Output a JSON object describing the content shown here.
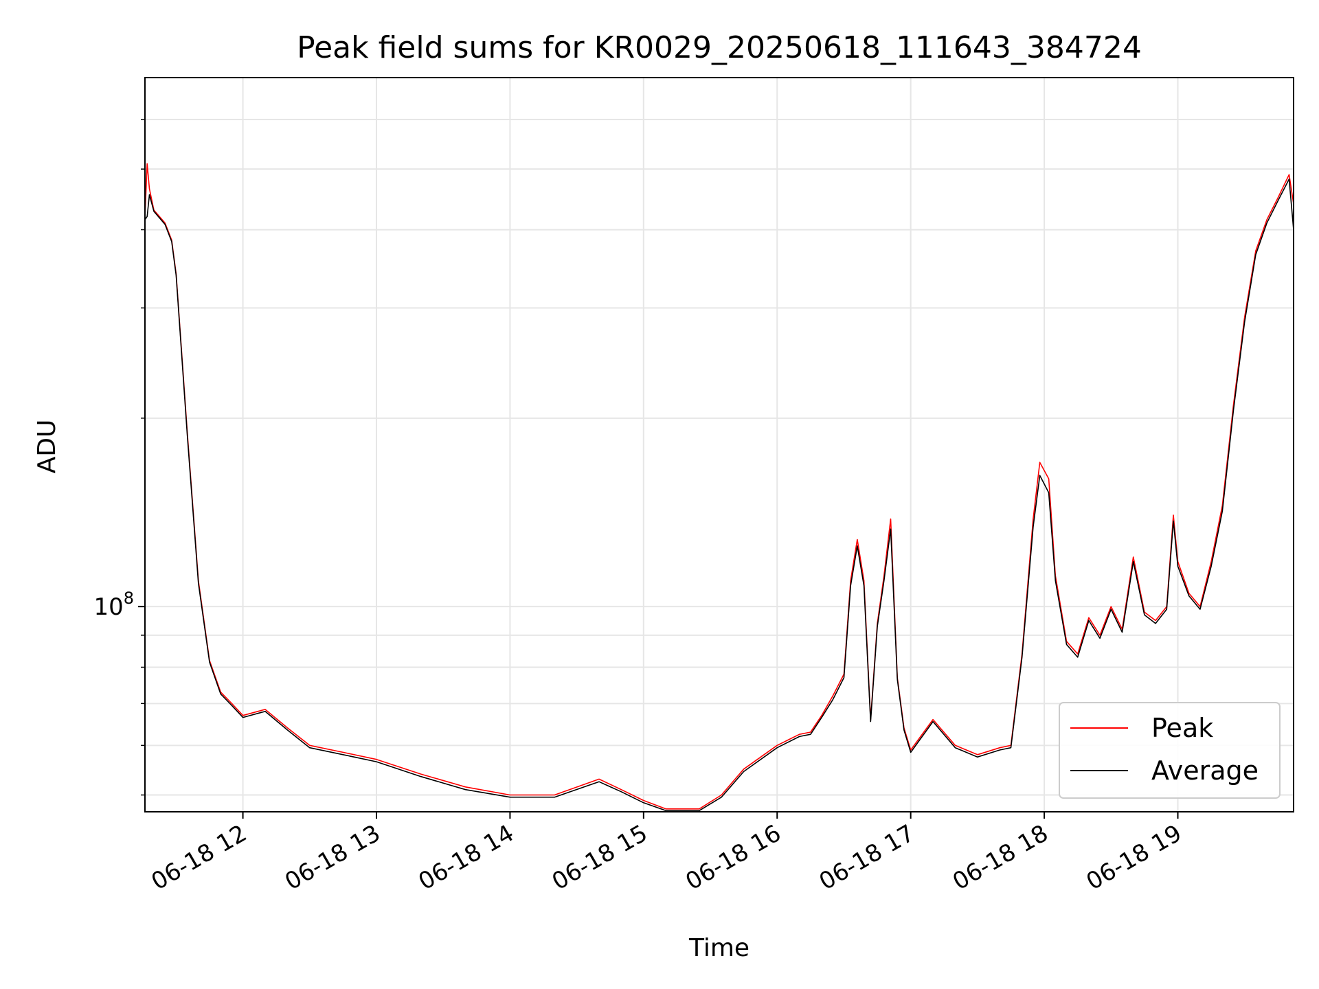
{
  "chart_data": {
    "type": "line",
    "title": "Peak field sums for KR0029_20250618_111643_384724",
    "xlabel": "Time",
    "ylabel": "ADU",
    "y_scale": "log",
    "y_tick_label": {
      "base": "10",
      "exp": "8"
    },
    "x_range": [
      "06-18 11:16",
      "06-18 19:52"
    ],
    "x_ticks": [
      "06-18 12",
      "06-18 13",
      "06-18 14",
      "06-18 15",
      "06-18 16",
      "06-18 17",
      "06-18 18",
      "06-18 19"
    ],
    "ylim": [
      47000000,
      700000000
    ],
    "grid": true,
    "legend_position": "lower-right",
    "series": [
      {
        "name": "Peak",
        "color": "#ff0000",
        "x": [
          "06-18 11:16",
          "06-18 11:17",
          "06-18 11:18",
          "06-18 11:20",
          "06-18 11:25",
          "06-18 11:28",
          "06-18 11:30",
          "06-18 11:35",
          "06-18 11:40",
          "06-18 11:45",
          "06-18 11:50",
          "06-18 11:55",
          "06-18 12:00",
          "06-18 12:10",
          "06-18 12:20",
          "06-18 12:30",
          "06-18 12:45",
          "06-18 13:00",
          "06-18 13:20",
          "06-18 13:40",
          "06-18 14:00",
          "06-18 14:20",
          "06-18 14:40",
          "06-18 14:50",
          "06-18 15:00",
          "06-18 15:10",
          "06-18 15:25",
          "06-18 15:35",
          "06-18 15:45",
          "06-18 16:00",
          "06-18 16:10",
          "06-18 16:15",
          "06-18 16:20",
          "06-18 16:25",
          "06-18 16:30",
          "06-18 16:33",
          "06-18 16:36",
          "06-18 16:39",
          "06-18 16:42",
          "06-18 16:45",
          "06-18 16:48",
          "06-18 16:51",
          "06-18 16:54",
          "06-18 16:57",
          "06-18 17:00",
          "06-18 17:10",
          "06-18 17:20",
          "06-18 17:30",
          "06-18 17:40",
          "06-18 17:45",
          "06-18 17:50",
          "06-18 17:55",
          "06-18 17:58",
          "06-18 18:02",
          "06-18 18:05",
          "06-18 18:10",
          "06-18 18:15",
          "06-18 18:20",
          "06-18 18:25",
          "06-18 18:30",
          "06-18 18:35",
          "06-18 18:40",
          "06-18 18:45",
          "06-18 18:50",
          "06-18 18:55",
          "06-18 18:58",
          "06-18 19:00",
          "06-18 19:05",
          "06-18 19:10",
          "06-18 19:15",
          "06-18 19:20",
          "06-18 19:25",
          "06-18 19:30",
          "06-18 19:35",
          "06-18 19:40",
          "06-18 19:45",
          "06-18 19:50",
          "06-18 19:52"
        ],
        "values": [
          420000000,
          510000000,
          465000000,
          430000000,
          410000000,
          385000000,
          340000000,
          190000000,
          110000000,
          82000000,
          73000000,
          70000000,
          67000000,
          68500000,
          64000000,
          60000000,
          58500000,
          57000000,
          54000000,
          51500000,
          50000000,
          50000000,
          53000000,
          51000000,
          49000000,
          47500000,
          47500000,
          50000000,
          55000000,
          60000000,
          62500000,
          63000000,
          67000000,
          72000000,
          78000000,
          110000000,
          128000000,
          110000000,
          66000000,
          94000000,
          112000000,
          138000000,
          77000000,
          64000000,
          59000000,
          66000000,
          60000000,
          58000000,
          59500000,
          60000000,
          84000000,
          138000000,
          170000000,
          160000000,
          112000000,
          88000000,
          84000000,
          96000000,
          90000000,
          100000000,
          92000000,
          120000000,
          98000000,
          95000000,
          100000000,
          140000000,
          118000000,
          105000000,
          100000000,
          118000000,
          145000000,
          210000000,
          290000000,
          370000000,
          415000000,
          450000000,
          490000000,
          440000000
        ]
      },
      {
        "name": "Average",
        "color": "#000000",
        "x": [
          "06-18 11:16",
          "06-18 11:17",
          "06-18 11:18",
          "06-18 11:20",
          "06-18 11:25",
          "06-18 11:28",
          "06-18 11:30",
          "06-18 11:35",
          "06-18 11:40",
          "06-18 11:45",
          "06-18 11:50",
          "06-18 11:55",
          "06-18 12:00",
          "06-18 12:10",
          "06-18 12:20",
          "06-18 12:30",
          "06-18 12:45",
          "06-18 13:00",
          "06-18 13:20",
          "06-18 13:40",
          "06-18 14:00",
          "06-18 14:20",
          "06-18 14:40",
          "06-18 14:50",
          "06-18 15:00",
          "06-18 15:10",
          "06-18 15:25",
          "06-18 15:35",
          "06-18 15:45",
          "06-18 16:00",
          "06-18 16:10",
          "06-18 16:15",
          "06-18 16:20",
          "06-18 16:25",
          "06-18 16:30",
          "06-18 16:33",
          "06-18 16:36",
          "06-18 16:39",
          "06-18 16:42",
          "06-18 16:45",
          "06-18 16:48",
          "06-18 16:51",
          "06-18 16:54",
          "06-18 16:57",
          "06-18 17:00",
          "06-18 17:10",
          "06-18 17:20",
          "06-18 17:30",
          "06-18 17:40",
          "06-18 17:45",
          "06-18 17:50",
          "06-18 17:55",
          "06-18 17:58",
          "06-18 18:02",
          "06-18 18:05",
          "06-18 18:10",
          "06-18 18:15",
          "06-18 18:20",
          "06-18 18:25",
          "06-18 18:30",
          "06-18 18:35",
          "06-18 18:40",
          "06-18 18:45",
          "06-18 18:50",
          "06-18 18:55",
          "06-18 18:58",
          "06-18 19:00",
          "06-18 19:05",
          "06-18 19:10",
          "06-18 19:15",
          "06-18 19:20",
          "06-18 19:25",
          "06-18 19:30",
          "06-18 19:35",
          "06-18 19:40",
          "06-18 19:45",
          "06-18 19:50",
          "06-18 19:52"
        ],
        "values": [
          415000000,
          420000000,
          455000000,
          428000000,
          408000000,
          383000000,
          338000000,
          188000000,
          109000000,
          81500000,
          72500000,
          69500000,
          66500000,
          68000000,
          63500000,
          59500000,
          58000000,
          56500000,
          53500000,
          51000000,
          49600000,
          49600000,
          52500000,
          50600000,
          48600000,
          47200000,
          47200000,
          49600000,
          54500000,
          59500000,
          62000000,
          62500000,
          66500000,
          71000000,
          77000000,
          108000000,
          125000000,
          108000000,
          65500000,
          93000000,
          110000000,
          133000000,
          76500000,
          63500000,
          58500000,
          65500000,
          59500000,
          57500000,
          59000000,
          59500000,
          83000000,
          134000000,
          162000000,
          152000000,
          110000000,
          87000000,
          83000000,
          95000000,
          89000000,
          99000000,
          91000000,
          118000000,
          97000000,
          94000000,
          99000000,
          137000000,
          116000000,
          104000000,
          99000000,
          116000000,
          142000000,
          206000000,
          285000000,
          365000000,
          410000000,
          445000000,
          482000000,
          400000000
        ]
      }
    ]
  }
}
